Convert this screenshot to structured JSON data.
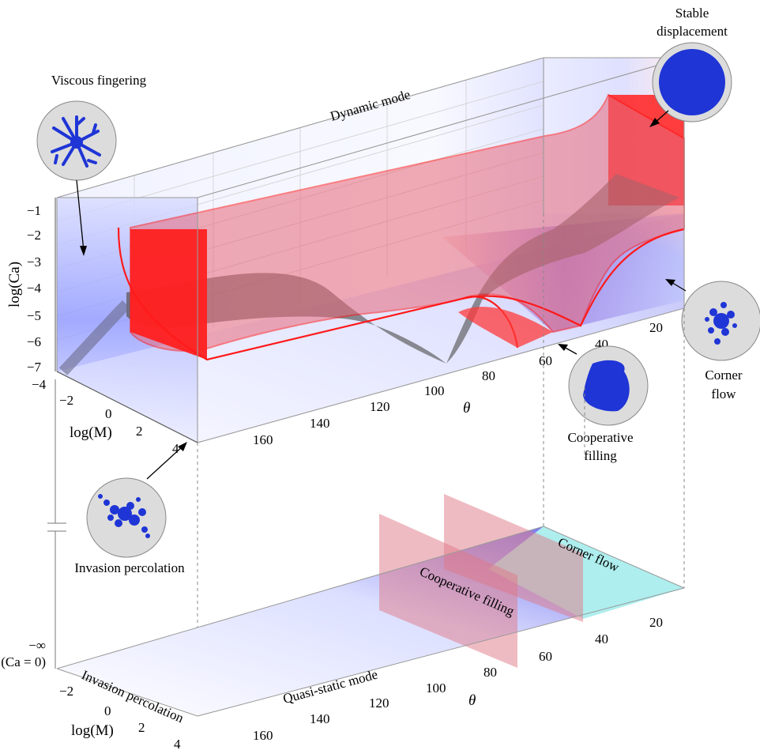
{
  "labels": {
    "viscous_fingering": "Viscous fingering",
    "stable_displacement_line1": "Stable",
    "stable_displacement_line2": "displacement",
    "dynamic_mode": "Dynamic mode",
    "corner_flow_line1": "Corner",
    "corner_flow_line2": "flow",
    "cooperative_filling_line1": "Cooperative",
    "cooperative_filling_line2": "filling",
    "invasion_percolation": "Invasion percolation",
    "quasi_static_mode": "Quasi-static mode",
    "plane_corner_flow": "Corner flow",
    "plane_cooperative_filling": "Cooperative filling",
    "plane_invasion_percolation": "Invasion percolation"
  },
  "axes": {
    "ca_label": "log(Ca)",
    "ca_ticks": [
      "−1",
      "−2",
      "−3",
      "−4",
      "−5",
      "−6",
      "−7"
    ],
    "ca_infinity": "−∞",
    "ca_zero": "(Ca = 0)",
    "m_label": "log(M)",
    "m_ticks": [
      "−4",
      "−2",
      "0",
      "2",
      "4"
    ],
    "m_ticks_bottom": [
      "−2",
      "0",
      "2",
      "4"
    ],
    "theta_label": "θ",
    "theta_ticks": [
      "160",
      "140",
      "120",
      "100",
      "80",
      "60",
      "40",
      "20"
    ]
  },
  "colors": {
    "red": "#ff2a2a",
    "blue": "#1f35d6",
    "cyan": "#aeeeee",
    "gray": "#555555",
    "inset_bg": "#dcdcdc"
  }
}
